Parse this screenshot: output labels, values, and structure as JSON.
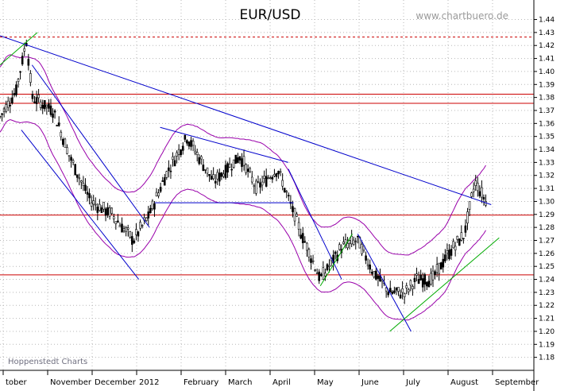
{
  "chart_data": {
    "type": "candlestick",
    "title": "EUR/USD",
    "watermark": "www.chartbuero.de",
    "source_label": "Hoppenstedt Charts",
    "y_axis": {
      "position": "right",
      "range": [
        1.17,
        1.455
      ],
      "ticks": [
        "1.18",
        "1.19",
        "1.20",
        "1.21",
        "1.22",
        "1.23",
        "1.24",
        "1.25",
        "1.26",
        "1.27",
        "1.28",
        "1.29",
        "1.30",
        "1.31",
        "1.32",
        "1.33",
        "1.34",
        "1.35",
        "1.36",
        "1.37",
        "1.38",
        "1.39",
        "1.40",
        "1.41",
        "1.42",
        "1.43",
        "1.44"
      ]
    },
    "x_axis": {
      "months": [
        "tober",
        "November",
        "December",
        "2012",
        "February",
        "March",
        "April",
        "May",
        "June",
        "July",
        "August",
        "September"
      ]
    },
    "grid": true,
    "price_path": [
      [
        0.0,
        1.365
      ],
      [
        0.03,
        1.385
      ],
      [
        0.05,
        1.425
      ],
      [
        0.06,
        1.38
      ],
      [
        0.1,
        1.37
      ],
      [
        0.13,
        1.335
      ],
      [
        0.17,
        1.3
      ],
      [
        0.21,
        1.29
      ],
      [
        0.25,
        1.27
      ],
      [
        0.28,
        1.29
      ],
      [
        0.31,
        1.32
      ],
      [
        0.35,
        1.35
      ],
      [
        0.4,
        1.315
      ],
      [
        0.45,
        1.335
      ],
      [
        0.48,
        1.31
      ],
      [
        0.52,
        1.325
      ],
      [
        0.56,
        1.28
      ],
      [
        0.6,
        1.24
      ],
      [
        0.64,
        1.265
      ],
      [
        0.67,
        1.27
      ],
      [
        0.7,
        1.245
      ],
      [
        0.73,
        1.23
      ],
      [
        0.76,
        1.23
      ],
      [
        0.78,
        1.24
      ],
      [
        0.81,
        1.24
      ],
      [
        0.84,
        1.26
      ],
      [
        0.87,
        1.275
      ],
      [
        0.89,
        1.315
      ],
      [
        0.91,
        1.3
      ]
    ],
    "bollinger_band": {
      "width": 0.025,
      "color": "#9900aa"
    },
    "horizontal_lines": [
      {
        "y": 1.4265,
        "color": "#cc0000",
        "style": "dashed"
      },
      {
        "y": 1.3825,
        "color": "#cc0000",
        "style": "solid"
      },
      {
        "y": 1.3755,
        "color": "#cc0000",
        "style": "solid"
      },
      {
        "y": 1.2895,
        "color": "#cc0000",
        "style": "solid"
      },
      {
        "y": 1.2435,
        "color": "#cc0000",
        "style": "solid"
      }
    ],
    "trend_lines": [
      {
        "name": "downtrend",
        "color": "#0000cc",
        "from": [
          0.0,
          1.4275
        ],
        "to": [
          0.92,
          1.2975
        ]
      },
      {
        "name": "channel-upper",
        "color": "#0000cc",
        "from": [
          0.06,
          1.405
        ],
        "to": [
          0.28,
          1.28
        ]
      },
      {
        "name": "channel-lower",
        "color": "#0000cc",
        "from": [
          0.04,
          1.355
        ],
        "to": [
          0.26,
          1.24
        ]
      },
      {
        "name": "flag-upper",
        "color": "#0000cc",
        "from": [
          0.3,
          1.357
        ],
        "to": [
          0.54,
          1.33
        ]
      },
      {
        "name": "flag-lower",
        "color": "#0000cc",
        "from": [
          0.29,
          1.299
        ],
        "to": [
          0.55,
          1.299
        ]
      },
      {
        "name": "may-decline",
        "color": "#0000cc",
        "from": [
          0.54,
          1.325
        ],
        "to": [
          0.64,
          1.24
        ]
      },
      {
        "name": "june-decline",
        "color": "#0000cc",
        "from": [
          0.67,
          1.275
        ],
        "to": [
          0.77,
          1.2
        ]
      },
      {
        "name": "green-top",
        "color": "#00aa00",
        "from": [
          0.0,
          1.405
        ],
        "to": [
          0.07,
          1.43
        ]
      },
      {
        "name": "green-june",
        "color": "#00aa00",
        "from": [
          0.6,
          1.235
        ],
        "to": [
          0.66,
          1.275
        ]
      },
      {
        "name": "green-uptrend",
        "color": "#00aa00",
        "from": [
          0.73,
          1.2
        ],
        "to": [
          0.935,
          1.272
        ]
      }
    ],
    "colors": {
      "candles": "#000000",
      "grid": "#b8b8b8",
      "support": "#cc0000"
    }
  }
}
